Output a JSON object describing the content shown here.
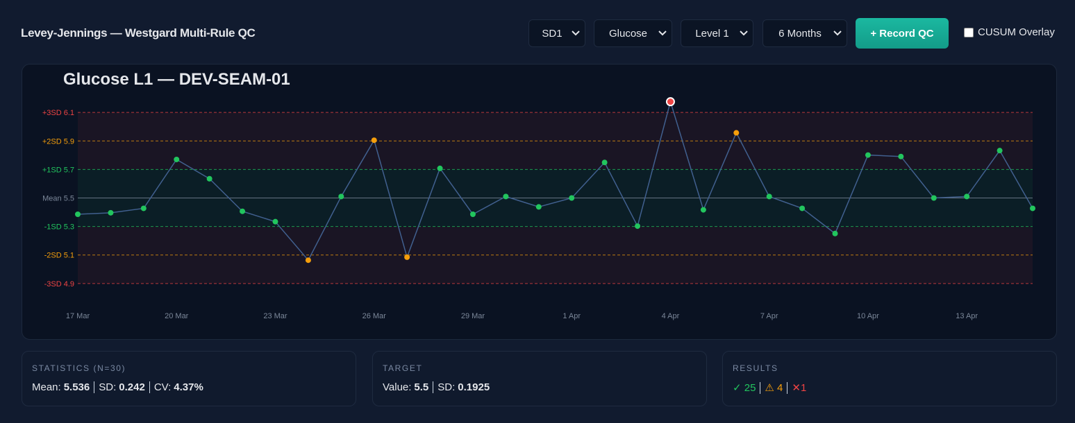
{
  "header": {
    "title": "Levey-Jennings — Westgard Multi-Rule QC",
    "selects": [
      "SD1",
      "Glucose",
      "Level 1",
      "6 Months"
    ],
    "button": "+ Record QC",
    "checkbox": "CUSUM Overlay"
  },
  "chart_data": {
    "type": "line",
    "title": "Glucose L1 — DEV-SEAM-01",
    "categories": [
      "17 Mar",
      null,
      null,
      "20 Mar",
      null,
      null,
      "23 Mar",
      null,
      null,
      "26 Mar",
      null,
      null,
      "29 Mar",
      null,
      null,
      "1 Apr",
      null,
      null,
      "4 Apr",
      null,
      null,
      "7 Apr",
      null,
      null,
      "10 Apr",
      null,
      null,
      "13 Apr",
      null,
      null
    ],
    "series": [
      {
        "color": "#41608f",
        "values": [
          5.39,
          5.4,
          5.43,
          5.76,
          5.63,
          5.41,
          5.34,
          5.08,
          5.51,
          5.89,
          5.1,
          5.7,
          5.39,
          5.51,
          5.44,
          5.5,
          5.74,
          5.31,
          6.15,
          5.42,
          5.94,
          5.51,
          5.43,
          5.26,
          5.79,
          5.78,
          5.5,
          5.51,
          5.82,
          5.43
        ],
        "point_colors": [
          "#22c55e",
          "#22c55e",
          "#22c55e",
          "#22c55e",
          "#22c55e",
          "#22c55e",
          "#22c55e",
          "#f59e0b",
          "#22c55e",
          "#f59e0b",
          "#f59e0b",
          "#22c55e",
          "#22c55e",
          "#22c55e",
          "#22c55e",
          "#22c55e",
          "#22c55e",
          "#22c55e",
          "#ef4444",
          "#22c55e",
          "#f59e0b",
          "#22c55e",
          "#22c55e",
          "#22c55e",
          "#22c55e",
          "#22c55e",
          "#22c55e",
          "#22c55e",
          "#22c55e",
          "#22c55e"
        ]
      }
    ],
    "ylim": [
      4.8,
      6.2
    ],
    "yticks": [
      {
        "value": 4.9225,
        "label": "-3SD 4.9"
      },
      {
        "value": 5.115,
        "label": "-2SD 5.1"
      },
      {
        "value": 5.3075,
        "label": "-1SD 5.3"
      },
      {
        "value": 5.5,
        "label": "Mean 5.5"
      },
      {
        "value": 5.6925,
        "label": "+1SD 5.7"
      },
      {
        "value": 5.885,
        "label": "+2SD 5.9"
      },
      {
        "value": 6.0775,
        "label": "+3SD 6.1"
      }
    ],
    "tick_colors": [
      "#ef4444",
      "#f59e0b",
      "#22c55e",
      "#7b8799",
      "#22c55e",
      "#f59e0b",
      "#ef4444"
    ],
    "band_colors": [
      "rgba(239,68,68,0.07)",
      "rgba(239,68,68,0.07)",
      "rgba(34,197,94,0.07)",
      "rgba(34,197,94,0.07)",
      "rgba(239,68,68,0.07)",
      "rgba(239,68,68,0.07)"
    ]
  },
  "stats": {
    "label": "STATISTICS (N=30)",
    "items": [
      {
        "k": "Mean:",
        "v": "5.536"
      },
      {
        "k": "SD:",
        "v": "0.242"
      },
      {
        "k": "CV:",
        "v": "4.37%"
      }
    ]
  },
  "target": {
    "label": "TARGET",
    "items": [
      {
        "k": "Value:",
        "v": "5.5"
      },
      {
        "k": "SD:",
        "v": "0.1925"
      }
    ]
  },
  "results": {
    "label": "RESULTS",
    "pass": "✓ 25",
    "warn": "⚠ 4",
    "fail": "✕1"
  }
}
